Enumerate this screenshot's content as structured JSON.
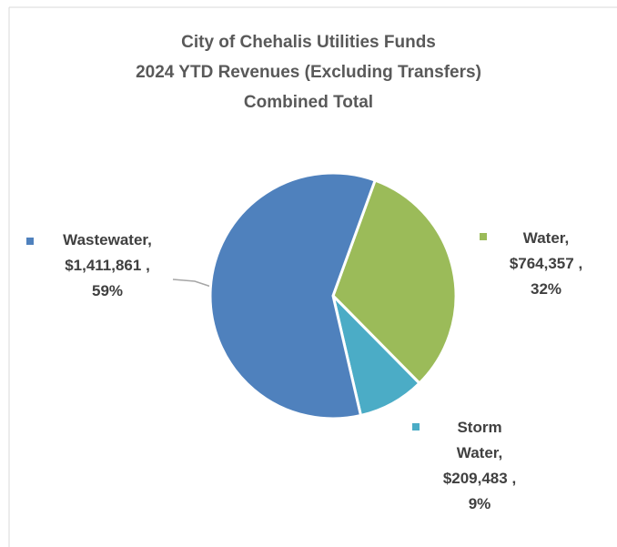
{
  "chart_data": {
    "type": "pie",
    "title": [
      "City of Chehalis Utilities Funds",
      "2024 YTD Revenues (Excluding Transfers)",
      "Combined Total"
    ],
    "categories": [
      "Water",
      "Storm Water",
      "Wastewater"
    ],
    "values": [
      764357,
      209483,
      1411861
    ],
    "value_labels": [
      "$764,357",
      "$209,483",
      "$1,411,861"
    ],
    "percent_labels": [
      "32%",
      "9%",
      "59%"
    ],
    "colors": [
      "#9bbb59",
      "#4bacc6",
      "#4f81bd"
    ]
  }
}
